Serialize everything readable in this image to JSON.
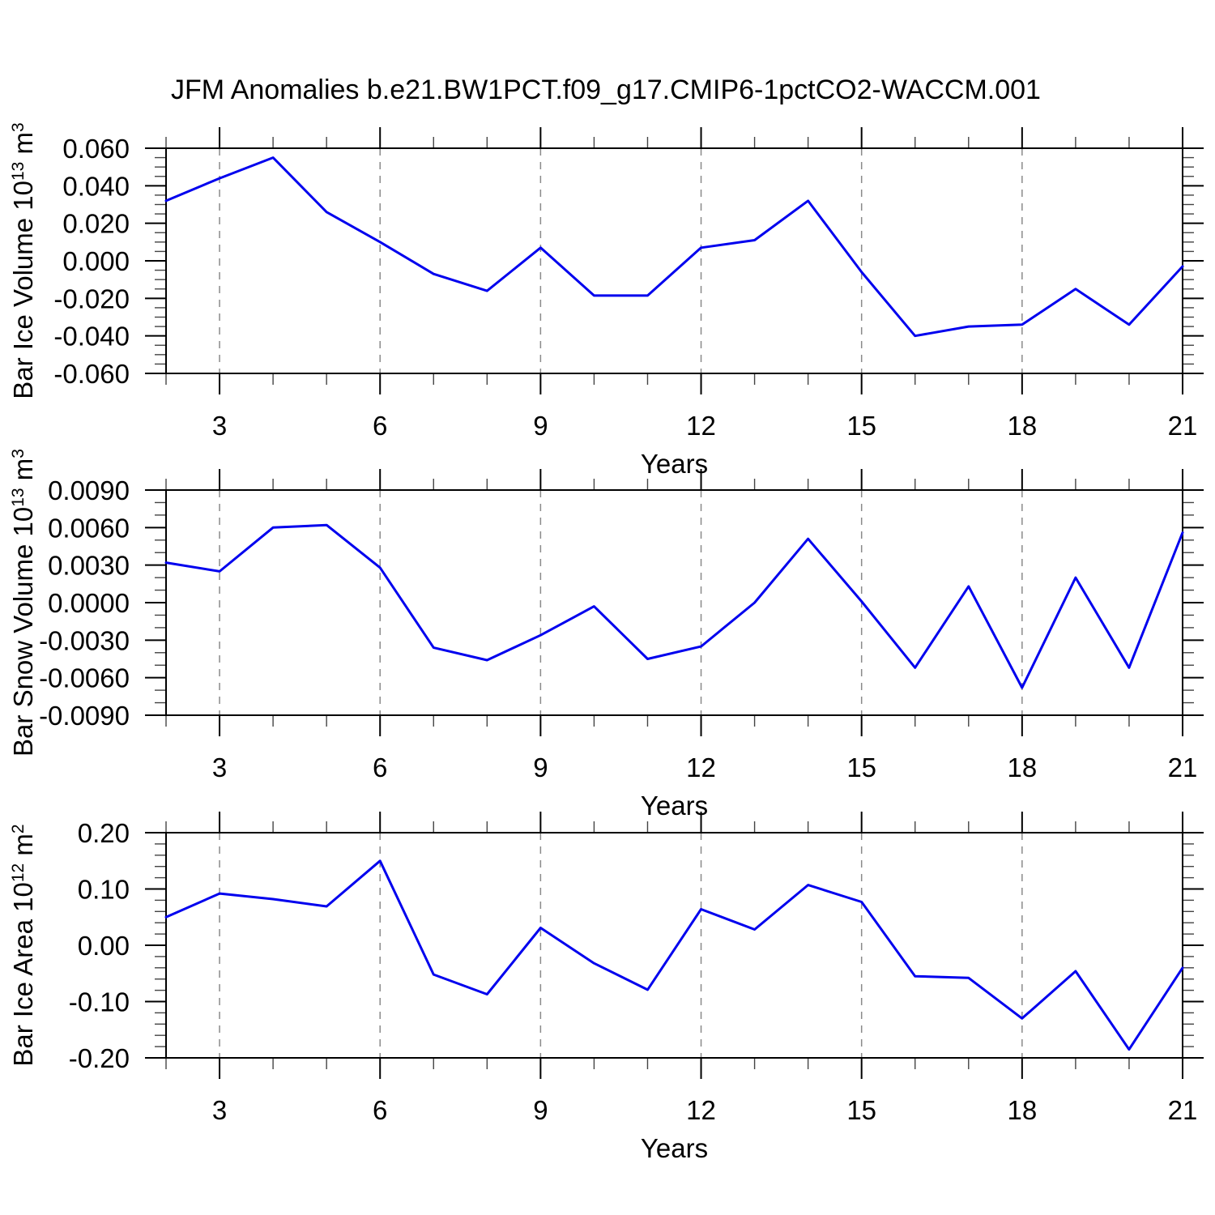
{
  "title": "JFM Anomalies b.e21.BW1PCT.f09_g17.CMIP6-1pctCO2-WACCM.001",
  "colors": {
    "line": "#0000ee",
    "grid": "#8a8a8a",
    "frame": "#000000",
    "minor_tick": "#444444",
    "text": "#000000"
  },
  "chart_data": [
    {
      "type": "line",
      "name": "bar-ice-volume",
      "title": "",
      "ylabel": "Bar Ice Volume 10^13 m^3",
      "ylabel_parts": [
        {
          "t": "Bar Ice Volume 10"
        },
        {
          "t": "13",
          "sup": true
        },
        {
          "t": " m"
        },
        {
          "t": "3",
          "sup": true
        }
      ],
      "xlabel": "Years",
      "x": [
        2,
        3,
        4,
        5,
        6,
        7,
        8,
        9,
        10,
        11,
        12,
        13,
        14,
        15,
        16,
        17,
        18,
        19,
        20,
        21
      ],
      "values": [
        0.032,
        0.044,
        0.055,
        0.026,
        0.01,
        -0.007,
        -0.016,
        0.007,
        -0.0185,
        -0.0185,
        0.007,
        0.011,
        0.032,
        -0.006,
        -0.04,
        -0.035,
        -0.034,
        -0.015,
        -0.034,
        -0.003
      ],
      "xlim": [
        2,
        21
      ],
      "ylim": [
        -0.06,
        0.06
      ],
      "ytick_values": [
        0.06,
        0.04,
        0.02,
        0.0,
        -0.02,
        -0.04,
        -0.06
      ],
      "ytick_labels": [
        "0.060",
        "0.040",
        "0.020",
        "0.000",
        "-0.020",
        "-0.040",
        "-0.060"
      ],
      "y_minor_step": 0.005,
      "xtick_major": [
        3,
        6,
        9,
        12,
        15,
        18,
        21
      ],
      "xtick_labels": [
        "3",
        "6",
        "9",
        "12",
        "15",
        "18",
        "21"
      ],
      "x_minor_step": 1,
      "grid_x": [
        3,
        6,
        9,
        12,
        15,
        18
      ],
      "grid_style": "dashed",
      "legend": null
    },
    {
      "type": "line",
      "name": "bar-snow-volume",
      "title": "",
      "ylabel": "Bar Snow Volume 10^13 m^3",
      "ylabel_parts": [
        {
          "t": "Bar Snow Volume 10"
        },
        {
          "t": "13",
          "sup": true
        },
        {
          "t": " m"
        },
        {
          "t": "3",
          "sup": true
        }
      ],
      "xlabel": "Years",
      "x": [
        2,
        3,
        4,
        5,
        6,
        7,
        8,
        9,
        10,
        11,
        12,
        13,
        14,
        15,
        16,
        17,
        18,
        19,
        20,
        21
      ],
      "values": [
        0.0032,
        0.0025,
        0.006,
        0.0062,
        0.0028,
        -0.0036,
        -0.0046,
        -0.0026,
        -0.0003,
        -0.0045,
        -0.0035,
        0.0,
        0.0051,
        0.0001,
        -0.0052,
        0.0013,
        -0.0068,
        0.002,
        -0.0052,
        0.0056
      ],
      "xlim": [
        2,
        21
      ],
      "ylim": [
        -0.009,
        0.009
      ],
      "ytick_values": [
        0.009,
        0.006,
        0.003,
        0.0,
        -0.003,
        -0.006,
        -0.009
      ],
      "ytick_labels": [
        "0.0090",
        "0.0060",
        "0.0030",
        "0.0000",
        "-0.0030",
        "-0.0060",
        "-0.0090"
      ],
      "y_minor_step": 0.001,
      "xtick_major": [
        3,
        6,
        9,
        12,
        15,
        18,
        21
      ],
      "xtick_labels": [
        "3",
        "6",
        "9",
        "12",
        "15",
        "18",
        "21"
      ],
      "x_minor_step": 1,
      "grid_x": [
        3,
        6,
        9,
        12,
        15,
        18
      ],
      "grid_style": "dashed",
      "legend": null
    },
    {
      "type": "line",
      "name": "bar-ice-area",
      "title": "",
      "ylabel": "Bar Ice Area 10^12 m^2",
      "ylabel_parts": [
        {
          "t": "Bar Ice Area 10"
        },
        {
          "t": "12",
          "sup": true
        },
        {
          "t": " m"
        },
        {
          "t": "2",
          "sup": true
        }
      ],
      "xlabel": "Years",
      "x": [
        2,
        3,
        4,
        5,
        6,
        7,
        8,
        9,
        10,
        11,
        12,
        13,
        14,
        15,
        16,
        17,
        18,
        19,
        20,
        21
      ],
      "values": [
        0.05,
        0.092,
        0.082,
        0.069,
        0.15,
        -0.052,
        -0.087,
        0.031,
        -0.032,
        -0.079,
        0.064,
        0.028,
        0.107,
        0.077,
        -0.055,
        -0.058,
        -0.13,
        -0.046,
        -0.185,
        -0.04
      ],
      "xlim": [
        2,
        21
      ],
      "ylim": [
        -0.2,
        0.2
      ],
      "ytick_values": [
        0.2,
        0.1,
        0.0,
        -0.1,
        -0.2
      ],
      "ytick_labels": [
        "0.20",
        "0.10",
        "0.00",
        "-0.10",
        "-0.20"
      ],
      "y_minor_step": 0.02,
      "xtick_major": [
        3,
        6,
        9,
        12,
        15,
        18,
        21
      ],
      "xtick_labels": [
        "3",
        "6",
        "9",
        "12",
        "15",
        "18",
        "21"
      ],
      "x_minor_step": 1,
      "grid_x": [
        3,
        6,
        9,
        12,
        15,
        18
      ],
      "grid_style": "dashed",
      "legend": null
    }
  ]
}
